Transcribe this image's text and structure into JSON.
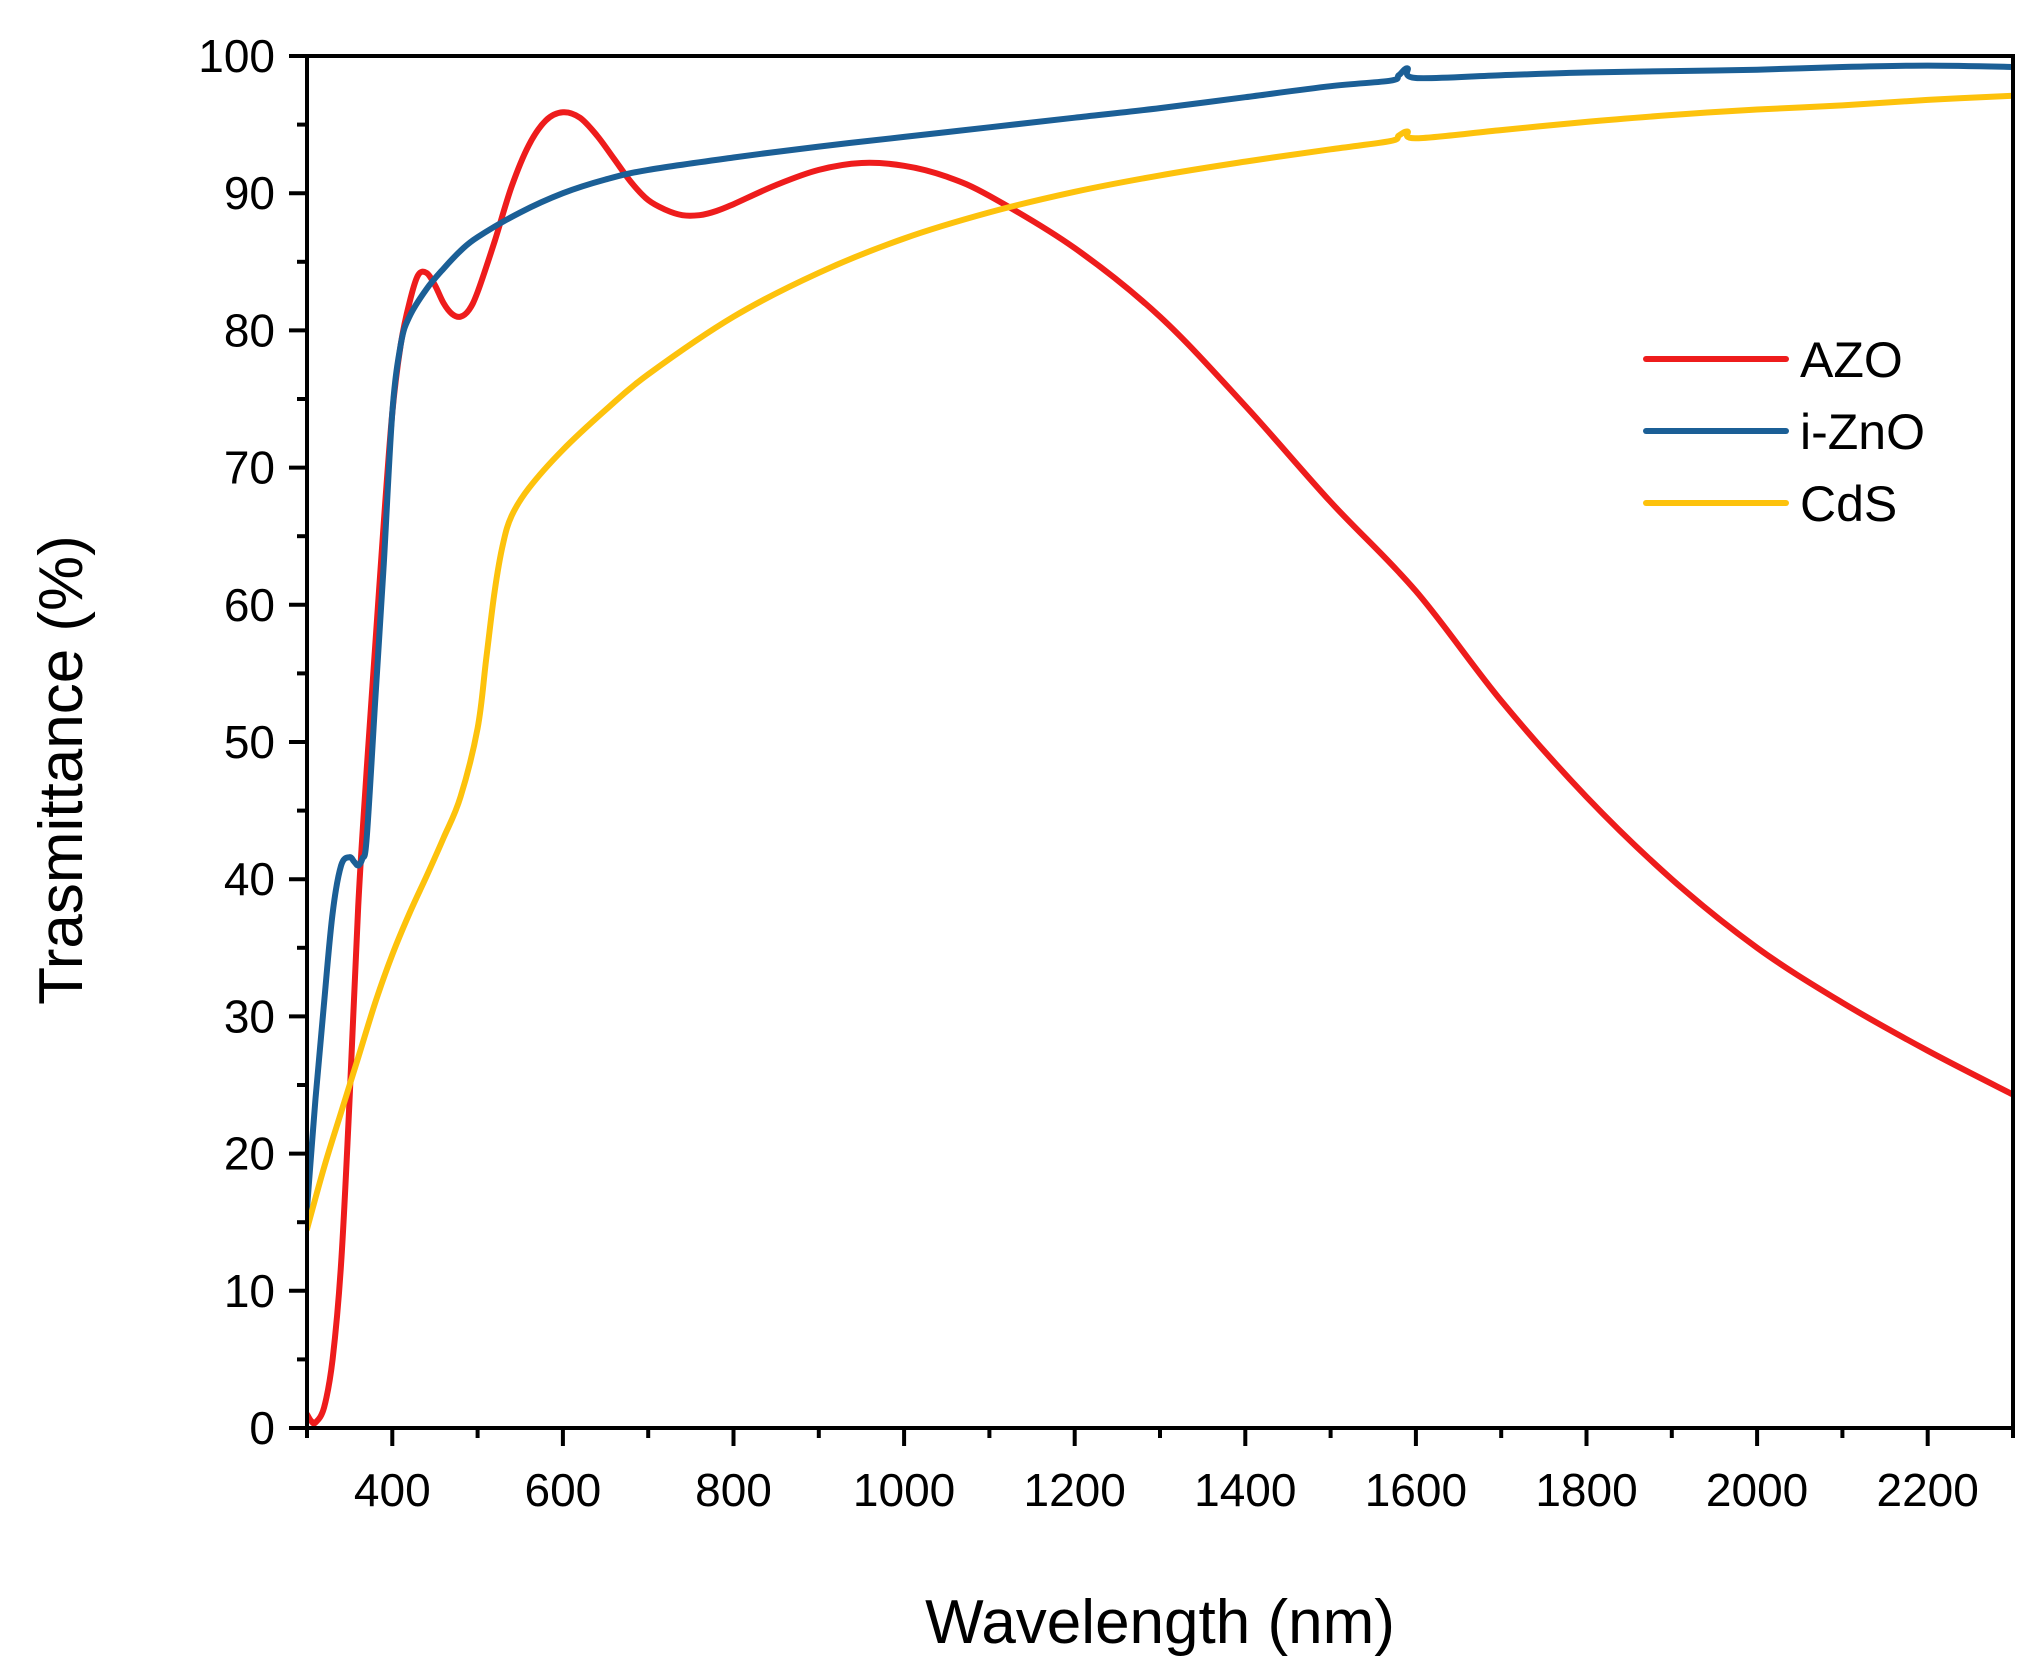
{
  "chart_data": {
    "type": "line",
    "xlabel": "Wavelength (nm)",
    "ylabel": "Trasmittance (%)",
    "xlim": [
      300,
      2300
    ],
    "ylim": [
      0,
      100
    ],
    "x_ticks": [
      400,
      600,
      800,
      1000,
      1200,
      1400,
      1600,
      1800,
      2000,
      2200
    ],
    "y_ticks": [
      0,
      10,
      20,
      30,
      40,
      50,
      60,
      70,
      80,
      90,
      100
    ],
    "legend_position": "right",
    "series": [
      {
        "name": "AZO",
        "color": "#ee1c1c",
        "points": [
          [
            300,
            1
          ],
          [
            305,
            0.5
          ],
          [
            310,
            0.4
          ],
          [
            320,
            1.5
          ],
          [
            330,
            5
          ],
          [
            340,
            12
          ],
          [
            350,
            24
          ],
          [
            360,
            38
          ],
          [
            370,
            48
          ],
          [
            380,
            57
          ],
          [
            390,
            66
          ],
          [
            400,
            74
          ],
          [
            410,
            79
          ],
          [
            420,
            82
          ],
          [
            430,
            84
          ],
          [
            440,
            84.2
          ],
          [
            450,
            83.3
          ],
          [
            460,
            82
          ],
          [
            470,
            81.2
          ],
          [
            480,
            81
          ],
          [
            490,
            81.5
          ],
          [
            500,
            82.8
          ],
          [
            520,
            86.5
          ],
          [
            540,
            90.5
          ],
          [
            560,
            93.5
          ],
          [
            580,
            95.3
          ],
          [
            600,
            95.9
          ],
          [
            620,
            95.5
          ],
          [
            640,
            94.2
          ],
          [
            660,
            92.5
          ],
          [
            680,
            90.8
          ],
          [
            700,
            89.5
          ],
          [
            720,
            88.8
          ],
          [
            740,
            88.4
          ],
          [
            760,
            88.4
          ],
          [
            780,
            88.7
          ],
          [
            800,
            89.2
          ],
          [
            850,
            90.6
          ],
          [
            900,
            91.7
          ],
          [
            950,
            92.2
          ],
          [
            1000,
            92
          ],
          [
            1050,
            91.2
          ],
          [
            1100,
            89.8
          ],
          [
            1200,
            86
          ],
          [
            1300,
            81
          ],
          [
            1400,
            74.5
          ],
          [
            1500,
            67.5
          ],
          [
            1600,
            61
          ],
          [
            1700,
            53
          ],
          [
            1800,
            46
          ],
          [
            1900,
            40
          ],
          [
            2000,
            35
          ],
          [
            2100,
            31
          ],
          [
            2200,
            27.5
          ],
          [
            2300,
            24.3
          ]
        ]
      },
      {
        "name": "i-ZnO",
        "color": "#1b5f96",
        "points": [
          [
            300,
            16
          ],
          [
            310,
            24
          ],
          [
            320,
            31
          ],
          [
            330,
            37.5
          ],
          [
            340,
            41
          ],
          [
            350,
            41.6
          ],
          [
            355,
            41.3
          ],
          [
            360,
            41
          ],
          [
            365,
            41.5
          ],
          [
            370,
            43
          ],
          [
            380,
            53
          ],
          [
            390,
            63
          ],
          [
            400,
            74
          ],
          [
            410,
            79
          ],
          [
            420,
            81
          ],
          [
            440,
            83
          ],
          [
            460,
            84.5
          ],
          [
            480,
            85.8
          ],
          [
            500,
            86.8
          ],
          [
            550,
            88.6
          ],
          [
            600,
            90
          ],
          [
            650,
            91
          ],
          [
            700,
            91.7
          ],
          [
            800,
            92.6
          ],
          [
            900,
            93.4
          ],
          [
            1000,
            94.1
          ],
          [
            1100,
            94.8
          ],
          [
            1200,
            95.5
          ],
          [
            1300,
            96.2
          ],
          [
            1400,
            97
          ],
          [
            1500,
            97.8
          ],
          [
            1570,
            98.2
          ],
          [
            1580,
            98.6
          ],
          [
            1590,
            99.1
          ],
          [
            1600,
            98.4
          ],
          [
            1700,
            98.6
          ],
          [
            1800,
            98.8
          ],
          [
            1900,
            98.9
          ],
          [
            2000,
            99
          ],
          [
            2100,
            99.2
          ],
          [
            2200,
            99.3
          ],
          [
            2300,
            99.2
          ]
        ]
      },
      {
        "name": "CdS",
        "color": "#fdc20c",
        "points": [
          [
            300,
            14.5
          ],
          [
            320,
            19
          ],
          [
            340,
            23
          ],
          [
            360,
            27
          ],
          [
            380,
            31
          ],
          [
            400,
            34.5
          ],
          [
            420,
            37.5
          ],
          [
            440,
            40.2
          ],
          [
            460,
            43
          ],
          [
            480,
            46
          ],
          [
            500,
            51
          ],
          [
            510,
            56
          ],
          [
            520,
            61
          ],
          [
            530,
            64.5
          ],
          [
            540,
            66.5
          ],
          [
            560,
            68.5
          ],
          [
            600,
            71.3
          ],
          [
            650,
            74.2
          ],
          [
            700,
            76.8
          ],
          [
            800,
            81
          ],
          [
            900,
            84.2
          ],
          [
            1000,
            86.7
          ],
          [
            1100,
            88.6
          ],
          [
            1200,
            90.1
          ],
          [
            1300,
            91.3
          ],
          [
            1400,
            92.3
          ],
          [
            1500,
            93.2
          ],
          [
            1570,
            93.8
          ],
          [
            1580,
            94.2
          ],
          [
            1590,
            94.5
          ],
          [
            1600,
            94
          ],
          [
            1700,
            94.6
          ],
          [
            1800,
            95.2
          ],
          [
            1900,
            95.7
          ],
          [
            2000,
            96.1
          ],
          [
            2100,
            96.4
          ],
          [
            2200,
            96.8
          ],
          [
            2300,
            97.1
          ]
        ]
      }
    ]
  }
}
